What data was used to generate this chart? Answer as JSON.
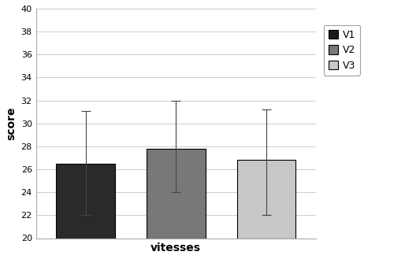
{
  "categories": [
    "V1",
    "V2",
    "V3"
  ],
  "values": [
    26.5,
    27.8,
    26.8
  ],
  "errors_upper": [
    4.6,
    4.2,
    4.4
  ],
  "errors_lower": [
    4.5,
    3.8,
    4.8
  ],
  "bar_colors": [
    "#2a2a2a",
    "#787878",
    "#c8c8c8"
  ],
  "bar_edgecolors": [
    "#000000",
    "#000000",
    "#000000"
  ],
  "legend_labels": [
    "V1",
    "V2",
    "V3"
  ],
  "legend_colors": [
    "#1a1a1a",
    "#787878",
    "#c8c8c8"
  ],
  "xlabel": "vitesses",
  "ylabel": "score",
  "ylim": [
    20,
    40
  ],
  "yticks": [
    20,
    22,
    24,
    26,
    28,
    30,
    32,
    34,
    36,
    38,
    40
  ],
  "bar_width": 0.65,
  "capsize": 4,
  "background_color": "#ffffff",
  "fig_width": 5.14,
  "fig_height": 3.29,
  "dpi": 100
}
